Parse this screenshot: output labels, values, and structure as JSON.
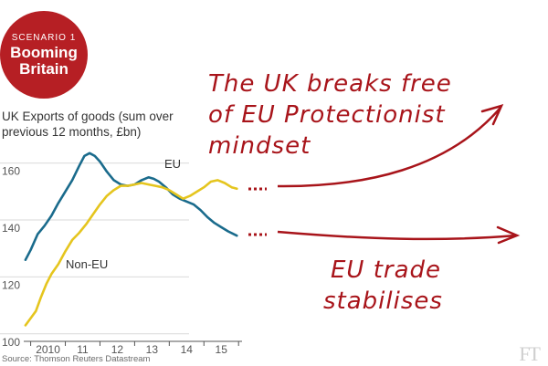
{
  "badge": {
    "kicker": "SCENARIO 1",
    "title_line1": "Booming",
    "title_line2": "Britain"
  },
  "source": "Source: Thomson Reuters Datastream",
  "logo": "FT",
  "colors": {
    "eu": "#1a6b8c",
    "non_eu": "#e5c51e",
    "annotation": "#a8141a",
    "badge": "#b61f24"
  },
  "annotations": {
    "top_line1": "The UK breaks free",
    "top_line2": "of EU Protectionist",
    "top_line3": "mindset",
    "bottom_line1": "EU trade",
    "bottom_line2": "stabilises"
  },
  "chart_data": {
    "type": "line",
    "title": "UK Exports of goods (sum over previous 12 months, £bn)",
    "xlabel": "",
    "ylabel": "",
    "x_ticks": [
      {
        "label": "2010",
        "x": 2010.5
      },
      {
        "label": "11",
        "x": 2011.5
      },
      {
        "label": "12",
        "x": 2012.5
      },
      {
        "label": "13",
        "x": 2013.5
      },
      {
        "label": "14",
        "x": 2014.5
      },
      {
        "label": "15",
        "x": 2015.5
      }
    ],
    "xlim": [
      2009.8,
      2016.1
    ],
    "ylim": [
      98,
      166
    ],
    "y_ticks": [
      100,
      120,
      140,
      160
    ],
    "grid": true,
    "series": [
      {
        "name": "EU",
        "x": [
          2009.85,
          2010.0,
          2010.2,
          2010.4,
          2010.6,
          2010.8,
          2011.0,
          2011.2,
          2011.4,
          2011.55,
          2011.7,
          2011.85,
          2012.0,
          2012.2,
          2012.4,
          2012.6,
          2012.8,
          2013.0,
          2013.2,
          2013.4,
          2013.55,
          2013.7,
          2013.9,
          2014.1,
          2014.3,
          2014.5,
          2014.7,
          2014.9,
          2015.1,
          2015.3,
          2015.5,
          2015.7,
          2015.95
        ],
        "values": [
          126,
          129.5,
          135,
          138,
          141.5,
          146,
          150,
          154,
          159,
          162.5,
          163.5,
          162.5,
          160.5,
          157,
          154,
          152.5,
          152,
          152.5,
          154,
          155,
          154.5,
          153.5,
          151.5,
          149,
          147.5,
          146.5,
          145.5,
          143.5,
          141,
          139,
          137.5,
          136,
          134.5
        ]
      },
      {
        "name": "Non-EU",
        "x": [
          2009.85,
          2010.0,
          2010.15,
          2010.3,
          2010.45,
          2010.6,
          2010.8,
          2011.0,
          2011.2,
          2011.4,
          2011.6,
          2011.8,
          2012.0,
          2012.2,
          2012.4,
          2012.6,
          2012.8,
          2013.0,
          2013.2,
          2013.4,
          2013.6,
          2013.8,
          2014.0,
          2014.2,
          2014.4,
          2014.6,
          2014.8,
          2015.0,
          2015.2,
          2015.4,
          2015.6,
          2015.8,
          2015.95
        ],
        "values": [
          103,
          105.5,
          108,
          113,
          117.5,
          121,
          124.5,
          129,
          133,
          135.5,
          138.5,
          142,
          145.5,
          148.5,
          150.5,
          152,
          152,
          152.5,
          153,
          152.5,
          152,
          151.5,
          150.5,
          149,
          147.5,
          148.5,
          150,
          151.5,
          153.5,
          154,
          153,
          151.5,
          151
        ]
      }
    ]
  }
}
